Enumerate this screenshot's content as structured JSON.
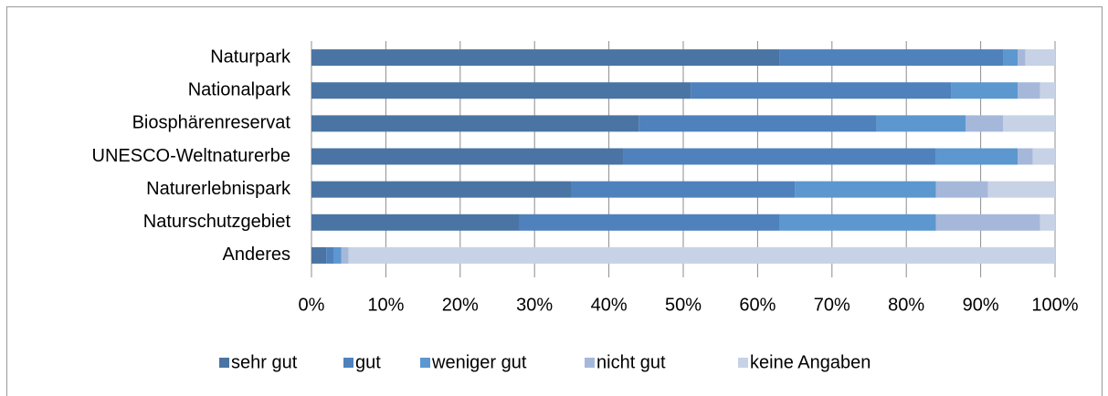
{
  "chart_data": {
    "type": "stacked_barh",
    "categories": [
      "Naturpark",
      "Nationalpark",
      "Biosphärenreservat",
      "UNESCO-Weltnaturerbe",
      "Naturerlebnispark",
      "Naturschutzgebiet",
      "Anderes"
    ],
    "series": [
      {
        "name": "sehr gut",
        "color": "#4a74a4",
        "values": [
          63,
          51,
          44,
          42,
          35,
          28,
          2
        ]
      },
      {
        "name": "gut",
        "color": "#4f81bd",
        "values": [
          30,
          35,
          32,
          42,
          30,
          35,
          1
        ]
      },
      {
        "name": "weniger gut",
        "color": "#5c97cf",
        "values": [
          2,
          9,
          12,
          11,
          19,
          21,
          1
        ]
      },
      {
        "name": "nicht gut",
        "color": "#a5b8da",
        "values": [
          1,
          3,
          5,
          2,
          7,
          14,
          1
        ]
      },
      {
        "name": "keine Angaben",
        "color": "#c7d2e6",
        "values": [
          4,
          2,
          7,
          3,
          9,
          2,
          95
        ]
      }
    ],
    "xlim": [
      0,
      100
    ],
    "xticks": [
      {
        "value": 0,
        "label": "0%"
      },
      {
        "value": 10,
        "label": "10%"
      },
      {
        "value": 20,
        "label": "20%"
      },
      {
        "value": 30,
        "label": "30%"
      },
      {
        "value": 40,
        "label": "40%"
      },
      {
        "value": 50,
        "label": "50%"
      },
      {
        "value": 60,
        "label": "60%"
      },
      {
        "value": 70,
        "label": "70%"
      },
      {
        "value": 80,
        "label": "80%"
      },
      {
        "value": 90,
        "label": "90%"
      },
      {
        "value": 100,
        "label": "100%"
      }
    ],
    "grid": true,
    "legend": "bottom"
  }
}
